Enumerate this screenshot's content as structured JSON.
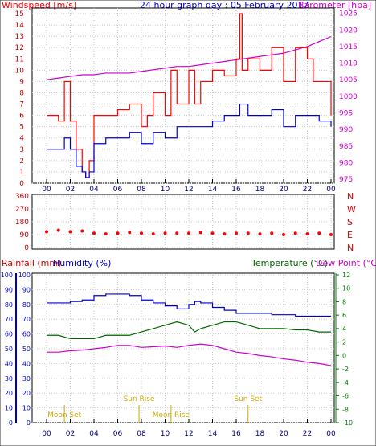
{
  "header": {
    "title": "24 hour graph day : 05 February 2017",
    "left_label": "Windspeed [m/s]",
    "right_label": "Barometer [hpa]"
  },
  "colors": {
    "wind": "#ff0000",
    "barometer": "#cc00cc",
    "windspeed_low": "#0000cc",
    "direction": "#ff0000",
    "humidity": "#0000cc",
    "temperature": "#006600",
    "dewpoint": "#cc00cc",
    "sun": "#ccaa00",
    "axis_left": "#0000cc",
    "axis_right": "#008000",
    "frame": "#000000"
  },
  "x_ticks": [
    "00",
    "02",
    "04",
    "06",
    "08",
    "10",
    "12",
    "14",
    "16",
    "18",
    "20",
    "22",
    "00"
  ],
  "chart_data": [
    {
      "type": "line",
      "panel": "wind_barometer",
      "x_label": "hour",
      "y_left_label": "Windspeed [m/s]",
      "y_left_ticks": [
        "0",
        "1",
        "2",
        "3",
        "4",
        "5",
        "6",
        "7",
        "8",
        "9",
        "10",
        "11",
        "12",
        "13",
        "14",
        "15"
      ],
      "y_left_range": [
        0,
        15.5
      ],
      "y_right_label": "Barometer [hpa]",
      "y_right_ticks": [
        "975",
        "980",
        "985",
        "990",
        "995",
        "1000",
        "1005",
        "1010",
        "1015",
        "1020",
        "1025"
      ],
      "y_right_range": [
        973.8,
        1026.6
      ],
      "series": [
        {
          "x": [
            0,
            1,
            1.5,
            2,
            2.5,
            3,
            3.3,
            3.6,
            4,
            5,
            6,
            7,
            8,
            8.5,
            9,
            10,
            10.5,
            11,
            12,
            12.5,
            13,
            14,
            15,
            16,
            16.3,
            16.5,
            17,
            18,
            19,
            20,
            21,
            22,
            22.5,
            23,
            24
          ],
          "values": [
            6,
            5.5,
            9,
            5.5,
            3,
            1,
            0.5,
            2,
            6,
            6,
            6.5,
            7,
            5,
            6,
            8,
            6,
            10,
            7,
            10,
            7,
            9,
            10,
            9.5,
            11,
            15,
            10,
            11,
            10,
            12,
            9,
            12,
            11,
            9,
            9,
            6
          ]
        },
        {
          "x": [
            0,
            1,
            1.5,
            2,
            2.5,
            3,
            3.3,
            3.6,
            4,
            5,
            6,
            7,
            8,
            9,
            10,
            11,
            12,
            13,
            14,
            15,
            16,
            16.3,
            17,
            18,
            19,
            20,
            21,
            22,
            23,
            24
          ],
          "values": [
            3,
            3,
            4,
            3,
            1.5,
            1,
            0.5,
            1,
            3.5,
            4,
            4,
            4.5,
            3.5,
            4.5,
            4,
            5,
            5,
            5,
            5.5,
            6,
            6,
            7,
            6,
            6,
            6.5,
            5,
            6,
            6,
            5.5,
            5
          ]
        },
        {
          "x": [
            0,
            1,
            2,
            3,
            4,
            5,
            6,
            7,
            8,
            9,
            10,
            11,
            12,
            13,
            14,
            15,
            16,
            17,
            18,
            19,
            20,
            21,
            22,
            23,
            24
          ],
          "values": [
            1005,
            1005.5,
            1006,
            1006.5,
            1006.5,
            1007,
            1007,
            1007,
            1007.5,
            1008,
            1008.5,
            1009,
            1009,
            1009.5,
            1010,
            1010.5,
            1011,
            1011.5,
            1012,
            1012.5,
            1013,
            1014,
            1015,
            1016.5,
            1018
          ]
        }
      ]
    },
    {
      "type": "scatter",
      "panel": "wind_direction",
      "y_left_ticks": [
        "360",
        "270",
        "180",
        "90",
        "0"
      ],
      "y_right_ticks": [
        "N",
        "W",
        "S",
        "E",
        "N"
      ],
      "y_range": [
        0,
        360
      ],
      "series": [
        {
          "x": [
            0,
            1,
            2,
            3,
            4,
            5,
            6,
            7,
            8,
            9,
            10,
            11,
            12,
            13,
            14,
            15,
            16,
            17,
            18,
            19,
            20,
            21,
            22,
            23,
            24
          ],
          "values": [
            110,
            120,
            110,
            115,
            100,
            95,
            100,
            105,
            100,
            95,
            100,
            100,
            100,
            105,
            100,
            95,
            100,
            100,
            95,
            100,
            90,
            100,
            95,
            100,
            90
          ]
        }
      ]
    },
    {
      "type": "line",
      "panel": "rain_humidity_temperature",
      "labels": {
        "rainfall": "Rainfall (mm)",
        "humidity": "Humidity (%)",
        "temperature": "Temperature (°C)",
        "dewpoint": "Dew Point (°C)"
      },
      "y_rain_ticks": [
        "0",
        "10",
        "20",
        "30",
        "40",
        "50",
        "60",
        "70",
        "80",
        "90",
        "100"
      ],
      "y_humidity_ticks": [
        "0",
        "10",
        "20",
        "30",
        "40",
        "50",
        "60",
        "70",
        "80",
        "90",
        "100"
      ],
      "y_temp_ticks": [
        "-10",
        "-8",
        "-6",
        "-4",
        "-2",
        "0",
        "2",
        "4",
        "6",
        "8",
        "10",
        "12"
      ],
      "y_temp_range": [
        -10,
        12
      ],
      "series": [
        {
          "x": [
            0,
            1,
            2,
            3,
            4,
            5,
            6,
            7,
            8,
            9,
            10,
            11,
            12,
            12.5,
            13,
            14,
            15,
            16,
            17,
            18,
            19,
            20,
            21,
            22,
            23,
            24
          ],
          "values": [
            81,
            81,
            82,
            83,
            86,
            87,
            87,
            86,
            83,
            81,
            79,
            77,
            80,
            82,
            81,
            78,
            76,
            74,
            74,
            74,
            73,
            73,
            72,
            72,
            72,
            72
          ]
        },
        {
          "x": [
            0,
            1,
            2,
            3,
            4,
            5,
            6,
            7,
            8,
            9,
            10,
            11,
            12,
            12.5,
            13,
            14,
            15,
            16,
            17,
            18,
            19,
            20,
            21,
            22,
            23,
            24
          ],
          "values": [
            3,
            3,
            2.5,
            2.5,
            2.5,
            3,
            3,
            3,
            3.5,
            4,
            4.5,
            5,
            4.5,
            3.5,
            4,
            4.5,
            5,
            5,
            4.5,
            4,
            4,
            4,
            3.8,
            3.8,
            3.5,
            3.5
          ]
        },
        {
          "x": [
            0,
            1,
            2,
            3,
            4,
            5,
            6,
            7,
            8,
            9,
            10,
            11,
            12,
            13,
            14,
            15,
            16,
            17,
            18,
            19,
            20,
            21,
            22,
            23,
            24
          ],
          "values": [
            0.5,
            0.5,
            0.7,
            0.8,
            1,
            1.2,
            1.5,
            1.5,
            1.2,
            1.3,
            1.4,
            1.2,
            1.5,
            1.7,
            1.5,
            1,
            0.5,
            0.3,
            0,
            -0.2,
            -0.5,
            -0.7,
            -1,
            -1.2,
            -1.5
          ]
        }
      ]
    }
  ],
  "events": {
    "moon_set_1": {
      "label": "Moon Set",
      "hour": 1.5
    },
    "sun_rise": {
      "label": "Sun Rise",
      "hour": 7.8
    },
    "moon_rise": {
      "label": "Moon Rise",
      "hour": 10.5
    },
    "sun_set": {
      "label": "Sun Set",
      "hour": 17.0
    }
  }
}
